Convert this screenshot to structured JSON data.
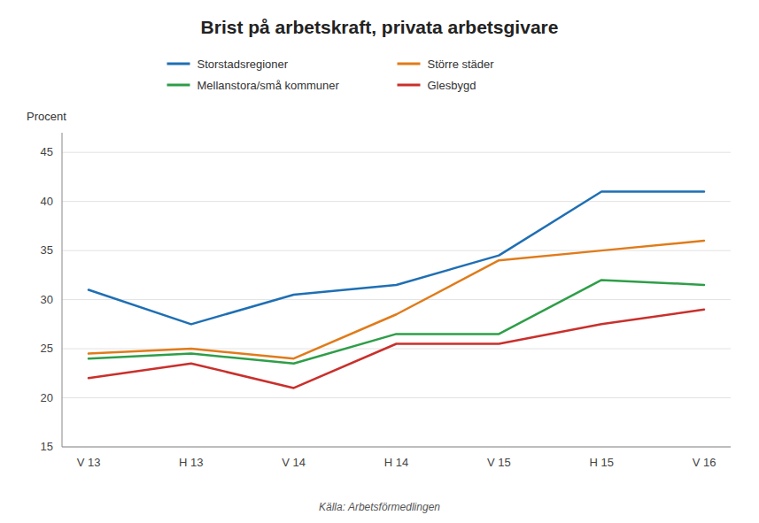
{
  "chart_data": {
    "type": "line",
    "title": "Brist på arbetskraft, privata arbetsgivare",
    "ylabel": "Procent",
    "source": "Källa: Arbetsförmedlingen",
    "categories": [
      "V 13",
      "H 13",
      "V 14",
      "H 14",
      "V 15",
      "H 15",
      "V 16"
    ],
    "series": [
      {
        "name": "Storstadsregioner",
        "values": [
          31.0,
          27.5,
          30.5,
          31.5,
          34.5,
          41.0,
          41.0
        ]
      },
      {
        "name": "Större städer",
        "values": [
          24.5,
          25.0,
          24.0,
          28.5,
          34.0,
          35.0,
          36.0
        ]
      },
      {
        "name": "Mellanstora/små kommuner",
        "values": [
          24.0,
          24.5,
          23.5,
          26.5,
          26.5,
          32.0,
          31.5
        ]
      },
      {
        "name": "Glesbygd",
        "values": [
          22.0,
          23.5,
          21.0,
          25.5,
          25.5,
          27.5,
          29.0
        ]
      }
    ],
    "ylim": [
      15,
      47
    ],
    "yticks": [
      15,
      20,
      25,
      30,
      35,
      40,
      45
    ],
    "grid": true,
    "legend": "top"
  }
}
